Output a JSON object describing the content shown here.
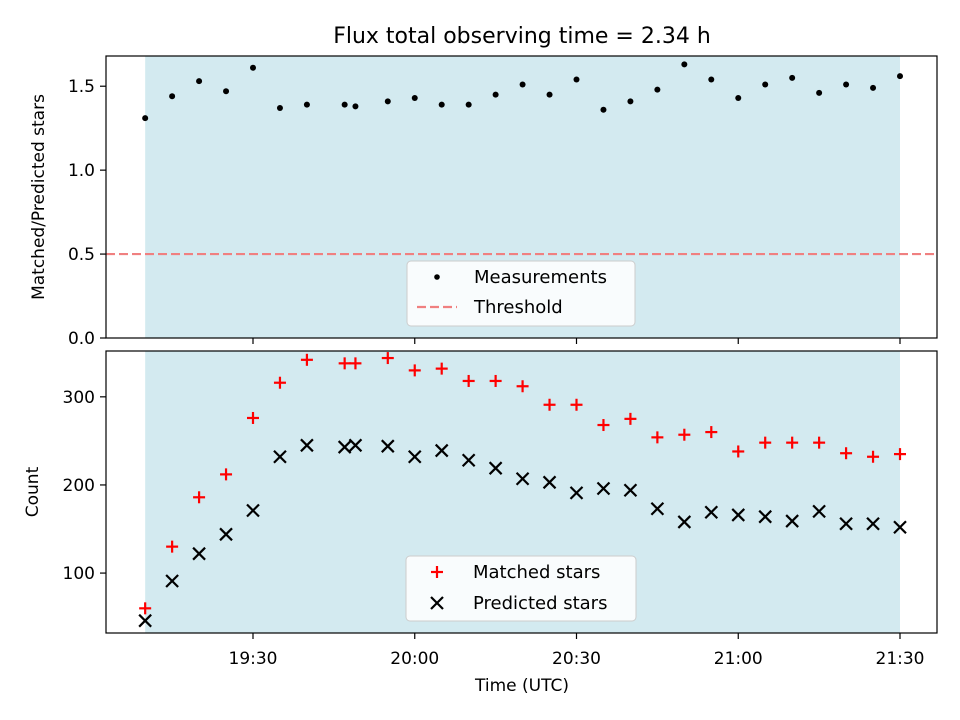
{
  "chart_data": [
    {
      "type": "scatter",
      "title": "Flux total observing time = 2.34 h",
      "xlabel": "",
      "ylabel": "Matched/Predicted stars",
      "ylim": [
        0,
        1.68
      ],
      "yticks": [
        "0.0",
        "0.5",
        "1.0",
        "1.5"
      ],
      "observing_window": [
        "19:10",
        "21:30"
      ],
      "legend_position": "lower center",
      "threshold": {
        "name": "Threshold",
        "value": 0.5,
        "color": "#f08080"
      },
      "series": [
        {
          "name": "Measurements",
          "color": "#000000",
          "marker": "dot",
          "x": [
            "19:10",
            "19:15",
            "19:20",
            "19:25",
            "19:30",
            "19:35",
            "19:40",
            "19:47",
            "19:49",
            "19:55",
            "20:00",
            "20:05",
            "20:10",
            "20:15",
            "20:20",
            "20:25",
            "20:30",
            "20:35",
            "20:40",
            "20:45",
            "20:50",
            "20:55",
            "21:00",
            "21:05",
            "21:10",
            "21:15",
            "21:20",
            "21:25",
            "21:30"
          ],
          "values": [
            1.31,
            1.44,
            1.53,
            1.47,
            1.61,
            1.37,
            1.39,
            1.39,
            1.38,
            1.41,
            1.43,
            1.39,
            1.39,
            1.45,
            1.51,
            1.45,
            1.54,
            1.36,
            1.41,
            1.48,
            1.63,
            1.54,
            1.43,
            1.51,
            1.55,
            1.46,
            1.51,
            1.49,
            1.56
          ]
        }
      ]
    },
    {
      "type": "scatter",
      "title": "",
      "xlabel": "Time (UTC)",
      "ylabel": "Count",
      "ylim": [
        32,
        352
      ],
      "yticks": [
        "100",
        "200",
        "300"
      ],
      "xticks": [
        "19:30",
        "20:00",
        "20:30",
        "21:00",
        "21:30"
      ],
      "legend_position": "lower center",
      "series": [
        {
          "name": "Matched stars",
          "color": "#ff0000",
          "marker": "plus",
          "x": [
            "19:10",
            "19:15",
            "19:20",
            "19:25",
            "19:30",
            "19:35",
            "19:40",
            "19:47",
            "19:49",
            "19:55",
            "20:00",
            "20:05",
            "20:10",
            "20:15",
            "20:20",
            "20:25",
            "20:30",
            "20:35",
            "20:40",
            "20:45",
            "20:50",
            "20:55",
            "21:00",
            "21:05",
            "21:10",
            "21:15",
            "21:20",
            "21:25",
            "21:30"
          ],
          "values": [
            60,
            130,
            186,
            212,
            276,
            316,
            342,
            338,
            338,
            344,
            330,
            332,
            318,
            318,
            312,
            291,
            291,
            268,
            275,
            254,
            257,
            260,
            238,
            248,
            248,
            248,
            236,
            232,
            235
          ]
        },
        {
          "name": "Predicted stars",
          "color": "#000000",
          "marker": "x",
          "x": [
            "19:10",
            "19:15",
            "19:20",
            "19:25",
            "19:30",
            "19:35",
            "19:40",
            "19:47",
            "19:49",
            "19:55",
            "20:00",
            "20:05",
            "20:10",
            "20:15",
            "20:20",
            "20:25",
            "20:30",
            "20:35",
            "20:40",
            "20:45",
            "20:50",
            "20:55",
            "21:00",
            "21:05",
            "21:10",
            "21:15",
            "21:20",
            "21:25",
            "21:30"
          ],
          "values": [
            46,
            91,
            122,
            144,
            171,
            232,
            245,
            243,
            245,
            244,
            232,
            239,
            228,
            219,
            207,
            203,
            191,
            196,
            194,
            173,
            158,
            169,
            166,
            164,
            159,
            170,
            156,
            156,
            152
          ]
        }
      ]
    }
  ],
  "colors": {
    "observing_band": "#d3eaf0",
    "band_edge": "#a9d3df"
  }
}
